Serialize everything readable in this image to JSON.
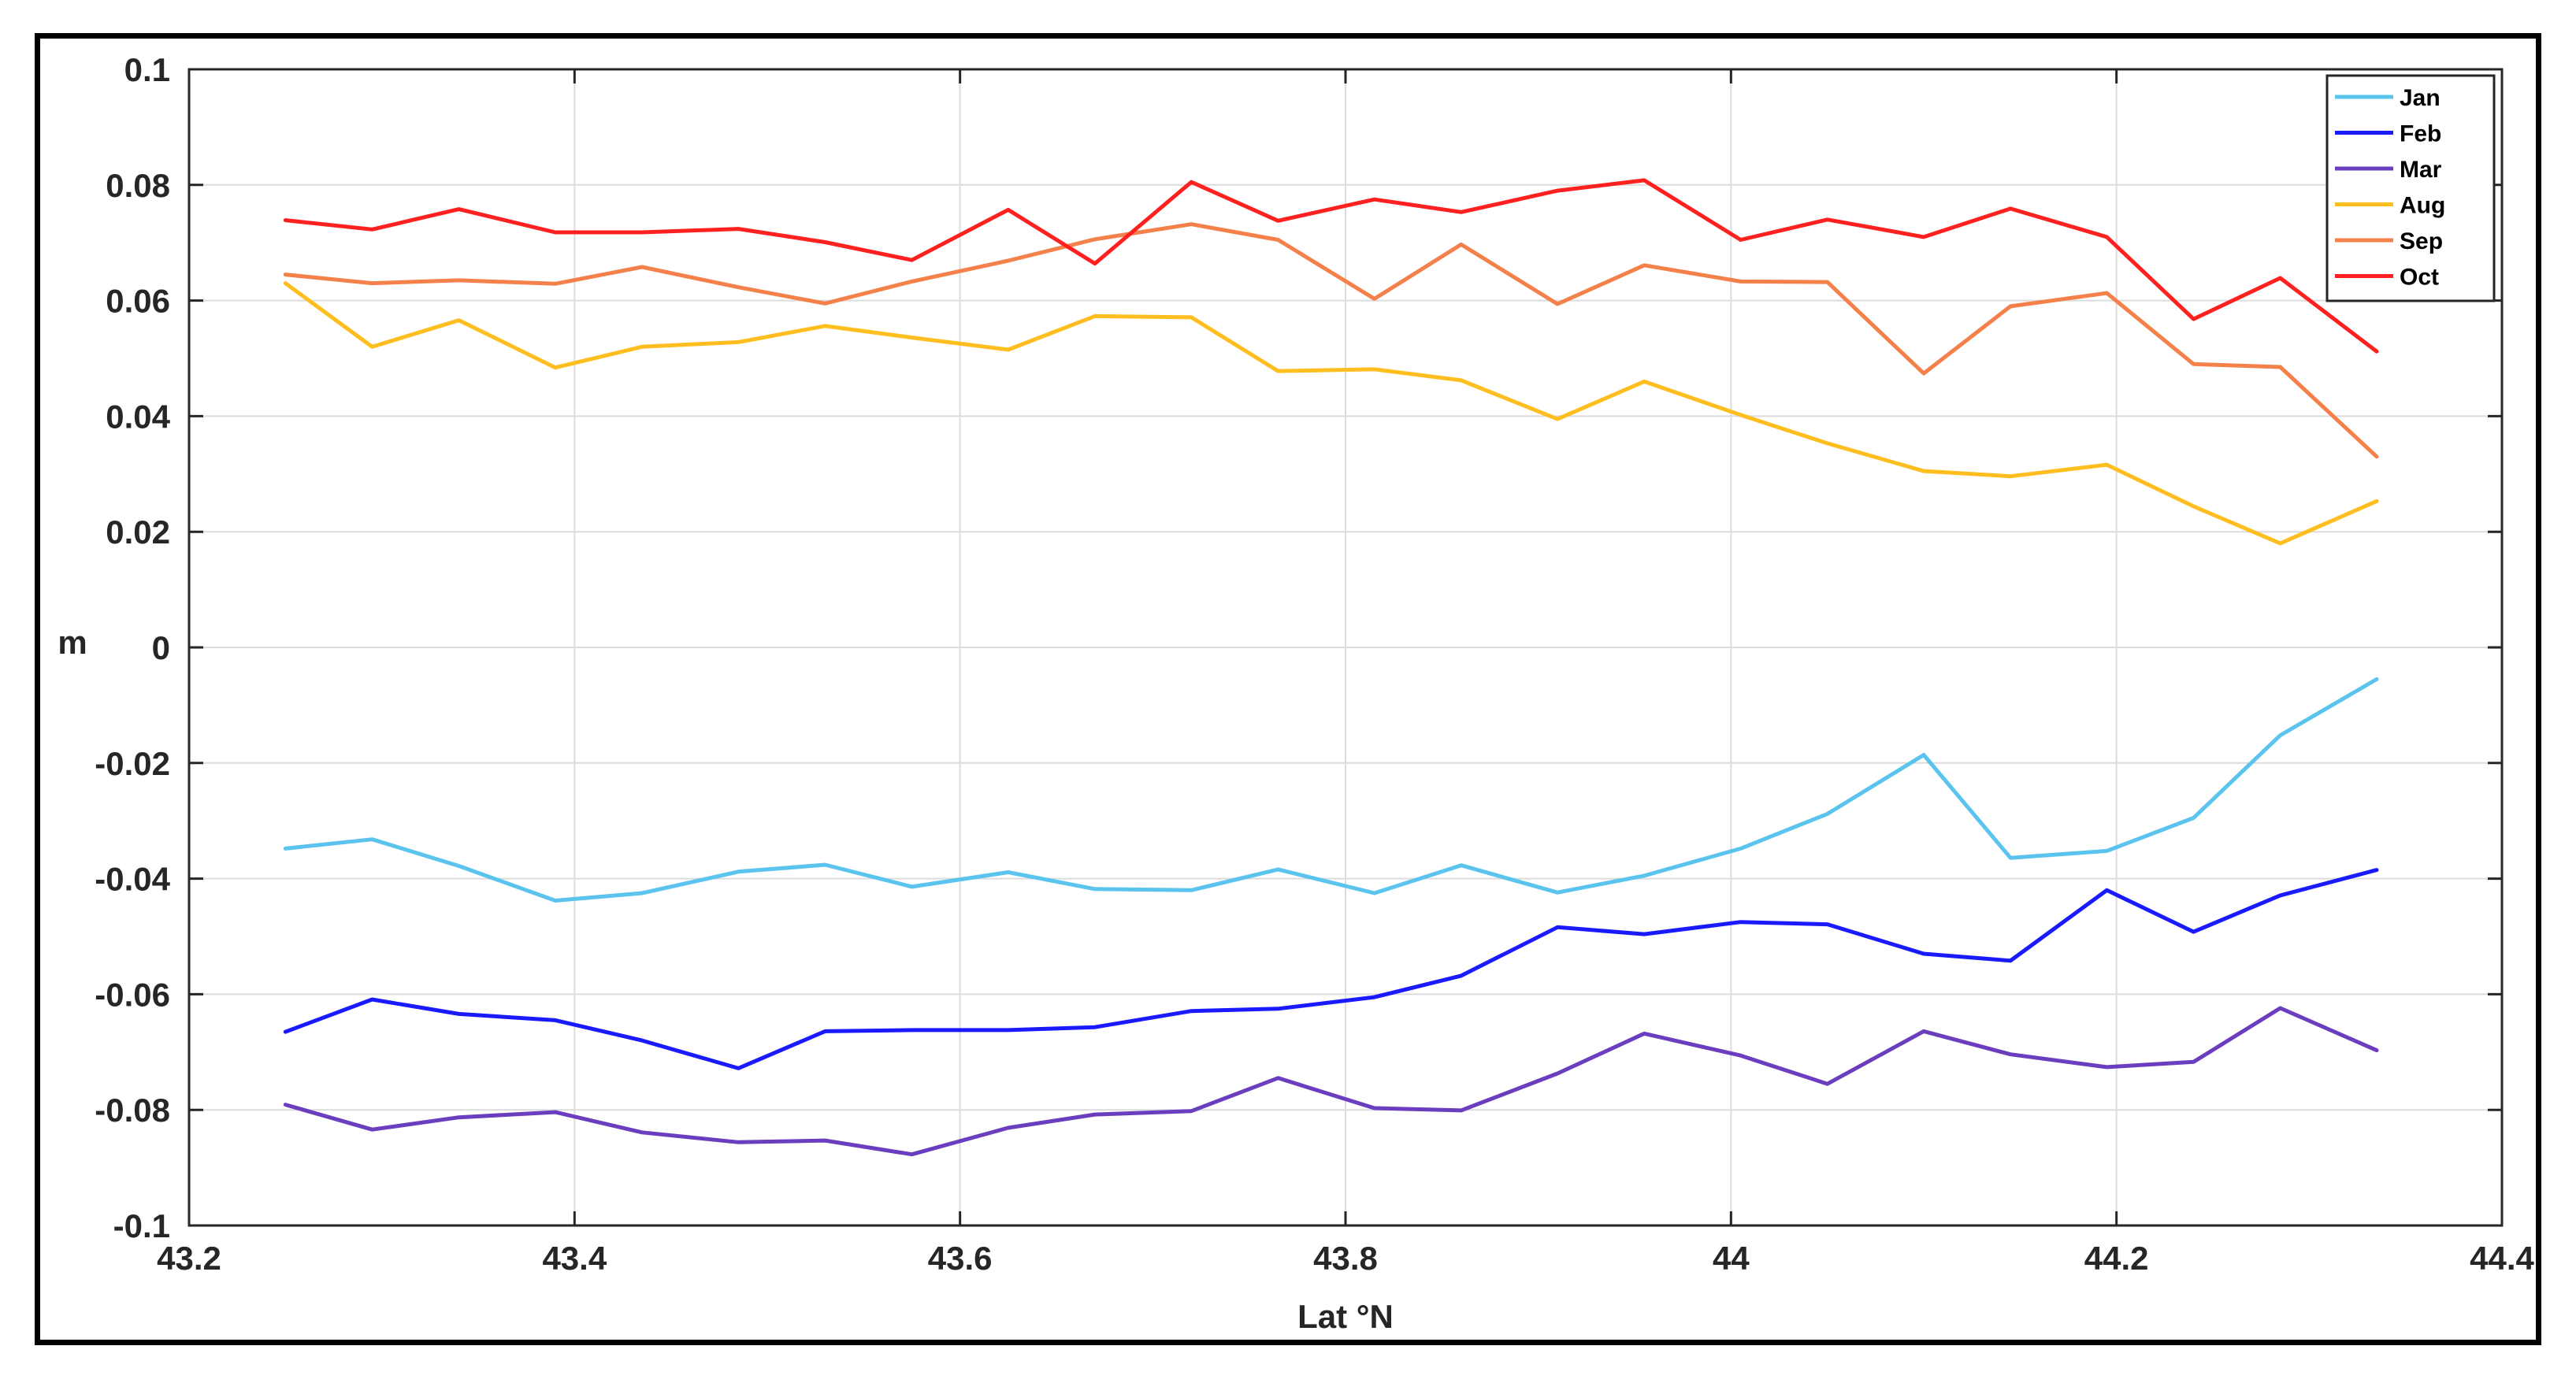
{
  "chart_data": {
    "type": "line",
    "xlabel": "Lat °N",
    "ylabel": "m",
    "xlim": [
      43.2,
      44.4
    ],
    "ylim": [
      -0.1,
      0.1
    ],
    "xticks": [
      43.2,
      43.4,
      43.6,
      43.8,
      44,
      44.2,
      44.4
    ],
    "xtick_labels": [
      "43.2",
      "43.4",
      "43.6",
      "43.8",
      "44",
      "44.2",
      "44.4"
    ],
    "yticks": [
      0.1,
      0.08,
      0.06,
      0.04,
      0.02,
      0,
      -0.02,
      -0.04,
      -0.06,
      -0.08,
      -0.1
    ],
    "ytick_labels": [
      "0.1",
      "0.08",
      "0.06",
      "0.04",
      "0.02",
      "0",
      "-0.02",
      "-0.04",
      "-0.06",
      "-0.08",
      "-0.1"
    ],
    "grid": true,
    "legend_position": "top-right",
    "x": [
      43.25,
      43.295,
      43.34,
      43.39,
      43.435,
      43.485,
      43.53,
      43.575,
      43.625,
      43.67,
      43.72,
      43.765,
      43.815,
      43.86,
      43.91,
      43.955,
      44.005,
      44.05,
      44.1,
      44.145,
      44.195,
      44.24,
      44.285,
      44.335
    ],
    "series": [
      {
        "name": "Jan",
        "color": "#5bc4ee",
        "values": [
          -0.0348,
          -0.0332,
          -0.0378,
          -0.0438,
          -0.0425,
          -0.0388,
          -0.0376,
          -0.0414,
          -0.0389,
          -0.0418,
          -0.042,
          -0.0384,
          -0.0425,
          -0.0377,
          -0.0424,
          -0.0395,
          -0.0348,
          -0.0288,
          -0.0186,
          -0.0364,
          -0.0352,
          -0.0295,
          -0.0152,
          -0.0055
        ]
      },
      {
        "name": "Feb",
        "color": "#1a1aff",
        "values": [
          -0.0665,
          -0.0609,
          -0.0634,
          -0.0645,
          -0.068,
          -0.0728,
          -0.0664,
          -0.0662,
          -0.0662,
          -0.0657,
          -0.0629,
          -0.0625,
          -0.0605,
          -0.0568,
          -0.0484,
          -0.0496,
          -0.0475,
          -0.0479,
          -0.053,
          -0.0542,
          -0.042,
          -0.0492,
          -0.0429,
          -0.0385
        ]
      },
      {
        "name": "Mar",
        "color": "#6a3ebf",
        "values": [
          -0.0791,
          -0.0834,
          -0.0813,
          -0.0804,
          -0.0839,
          -0.0856,
          -0.0853,
          -0.0877,
          -0.0831,
          -0.0808,
          -0.0802,
          -0.0745,
          -0.0797,
          -0.0801,
          -0.0737,
          -0.0668,
          -0.0706,
          -0.0755,
          -0.0664,
          -0.0704,
          -0.0726,
          -0.0717,
          -0.0624,
          -0.0697
        ]
      },
      {
        "name": "Aug",
        "color": "#ffbe1f",
        "values": [
          0.063,
          0.052,
          0.0566,
          0.0484,
          0.052,
          0.0528,
          0.0556,
          0.0536,
          0.0515,
          0.0573,
          0.0571,
          0.0478,
          0.0481,
          0.0462,
          0.0395,
          0.046,
          0.0402,
          0.0353,
          0.0305,
          0.0296,
          0.0316,
          0.0244,
          0.018,
          0.0253
        ]
      },
      {
        "name": "Sep",
        "color": "#f4804a",
        "values": [
          0.0645,
          0.063,
          0.0635,
          0.0629,
          0.0658,
          0.0623,
          0.0595,
          0.0633,
          0.0669,
          0.0706,
          0.0732,
          0.0705,
          0.0603,
          0.0697,
          0.0594,
          0.0661,
          0.0633,
          0.0632,
          0.0474,
          0.059,
          0.0613,
          0.049,
          0.0485,
          0.033
        ]
      },
      {
        "name": "Oct",
        "color": "#ff2020",
        "values": [
          0.0739,
          0.0723,
          0.0758,
          0.0718,
          0.0718,
          0.0724,
          0.0701,
          0.067,
          0.0757,
          0.0664,
          0.0805,
          0.0738,
          0.0775,
          0.0753,
          0.079,
          0.0808,
          0.0705,
          0.074,
          0.071,
          0.0759,
          0.071,
          0.0568,
          0.0639,
          0.0512
        ]
      }
    ]
  }
}
